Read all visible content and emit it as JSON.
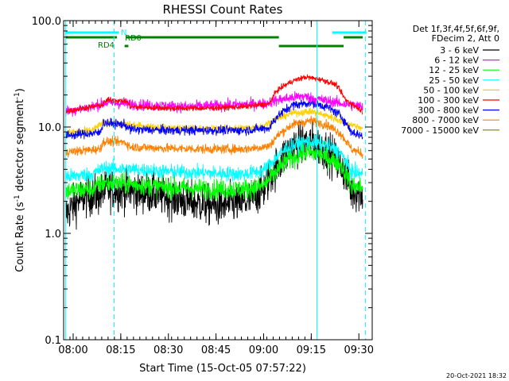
{
  "chart_data": {
    "type": "line",
    "title": "RHESSI Count Rates",
    "xlabel": "Start Time (15-Oct-05 07:57:22)",
    "ylabel_main": "Count Rate (s",
    "ylabel_sup1": "-1",
    "ylabel_mid": " detector segment",
    "ylabel_sup2": "-1",
    "ylabel_end": ")",
    "yscale": "log",
    "ylim": [
      0.1,
      100.0
    ],
    "xlim_minutes": [
      7.95,
      9.57
    ],
    "x_ticks": [
      {
        "label": "08:00",
        "minute": 8.0
      },
      {
        "label": "08:15",
        "minute": 8.25
      },
      {
        "label": "08:30",
        "minute": 8.5
      },
      {
        "label": "08:45",
        "minute": 8.75
      },
      {
        "label": "09:00",
        "minute": 9.0
      },
      {
        "label": "09:15",
        "minute": 9.25
      },
      {
        "label": "09:30",
        "minute": 9.5
      }
    ],
    "y_ticks": [
      {
        "label": "0.1",
        "value": 0.1
      },
      {
        "label": "1.0",
        "value": 1.0
      },
      {
        "label": "10.0",
        "value": 10.0
      },
      {
        "label": "100.0",
        "value": 100.0
      }
    ],
    "legend_header": [
      "Det 1f,3f,4f,5f,6f,9f,",
      "FDecim 2, Att 0"
    ],
    "series": [
      {
        "name": "3 - 6 keV",
        "color": "#000000",
        "noise": 0.22,
        "levels": [
          [
            7.96,
            1.5
          ],
          [
            8.05,
            2.2
          ],
          [
            8.14,
            2.3
          ],
          [
            8.18,
            2.6
          ],
          [
            8.4,
            2.4
          ],
          [
            8.6,
            2.0
          ],
          [
            8.75,
            1.8
          ],
          [
            8.92,
            2.0
          ],
          [
            9.0,
            2.6
          ],
          [
            9.08,
            4.5
          ],
          [
            9.15,
            6.5
          ],
          [
            9.25,
            7.2
          ],
          [
            9.33,
            6.0
          ],
          [
            9.42,
            4.0
          ],
          [
            9.46,
            2.5
          ],
          [
            9.52,
            2.4
          ]
        ]
      },
      {
        "name": "6 - 12 keV",
        "color": "#ff00ff",
        "noise": 0.06,
        "levels": [
          [
            7.96,
            14.0
          ],
          [
            8.1,
            15.5
          ],
          [
            8.18,
            17.0
          ],
          [
            8.4,
            16.0
          ],
          [
            8.6,
            15.5
          ],
          [
            8.8,
            16.0
          ],
          [
            9.0,
            16.5
          ],
          [
            9.08,
            18.0
          ],
          [
            9.2,
            19.5
          ],
          [
            9.3,
            18.0
          ],
          [
            9.42,
            16.5
          ],
          [
            9.52,
            15.5
          ]
        ]
      },
      {
        "name": "12 - 25 keV",
        "color": "#00ff00",
        "noise": 0.11,
        "levels": [
          [
            7.96,
            2.5
          ],
          [
            8.1,
            2.6
          ],
          [
            8.16,
            3.0
          ],
          [
            8.3,
            2.9
          ],
          [
            8.5,
            2.7
          ],
          [
            8.7,
            2.6
          ],
          [
            8.9,
            2.6
          ],
          [
            9.0,
            2.8
          ],
          [
            9.05,
            3.5
          ],
          [
            9.12,
            4.8
          ],
          [
            9.22,
            5.8
          ],
          [
            9.3,
            5.5
          ],
          [
            9.4,
            4.5
          ],
          [
            9.46,
            2.8
          ],
          [
            9.52,
            2.7
          ]
        ]
      },
      {
        "name": "25 - 50 keV",
        "color": "#00ffff",
        "noise": 0.08,
        "levels": [
          [
            7.96,
            3.4
          ],
          [
            8.1,
            3.6
          ],
          [
            8.16,
            4.1
          ],
          [
            8.3,
            4.0
          ],
          [
            8.5,
            3.8
          ],
          [
            8.7,
            3.7
          ],
          [
            8.9,
            3.6
          ],
          [
            9.0,
            3.9
          ],
          [
            9.05,
            4.8
          ],
          [
            9.12,
            6.3
          ],
          [
            9.22,
            7.3
          ],
          [
            9.3,
            7.0
          ],
          [
            9.4,
            5.8
          ],
          [
            9.46,
            3.8
          ],
          [
            9.52,
            3.6
          ]
        ]
      },
      {
        "name": "50 - 100 keV",
        "color": "#ffd000",
        "noise": 0.04,
        "levels": [
          [
            7.96,
            8.8
          ],
          [
            8.1,
            9.3
          ],
          [
            8.16,
            11.0
          ],
          [
            8.28,
            10.5
          ],
          [
            8.5,
            9.8
          ],
          [
            8.7,
            9.6
          ],
          [
            8.9,
            9.8
          ],
          [
            9.0,
            10.2
          ],
          [
            9.05,
            11.5
          ],
          [
            9.15,
            13.5
          ],
          [
            9.25,
            14.0
          ],
          [
            9.35,
            12.5
          ],
          [
            9.42,
            11.0
          ],
          [
            9.52,
            9.8
          ]
        ]
      },
      {
        "name": "100 - 300 keV",
        "color": "#ff0000",
        "noise": 0.03,
        "levels": [
          [
            7.96,
            14.0
          ],
          [
            8.05,
            15.0
          ],
          [
            8.15,
            16.0
          ],
          [
            8.18,
            18.0
          ],
          [
            8.28,
            17.5
          ],
          [
            8.3,
            15.5
          ],
          [
            8.5,
            15.0
          ],
          [
            8.7,
            15.0
          ],
          [
            8.9,
            15.5
          ],
          [
            9.03,
            16.5
          ],
          [
            9.07,
            22.0
          ],
          [
            9.15,
            27.0
          ],
          [
            9.22,
            29.5
          ],
          [
            9.3,
            28.0
          ],
          [
            9.38,
            25.0
          ],
          [
            9.43,
            18.0
          ],
          [
            9.52,
            14.0
          ]
        ]
      },
      {
        "name": "300 - 800 keV",
        "color": "#0000ff",
        "noise": 0.05,
        "levels": [
          [
            7.96,
            8.3
          ],
          [
            8.05,
            8.6
          ],
          [
            8.14,
            8.8
          ],
          [
            8.16,
            11.0
          ],
          [
            8.27,
            10.5
          ],
          [
            8.3,
            9.5
          ],
          [
            8.5,
            9.3
          ],
          [
            8.7,
            9.3
          ],
          [
            8.9,
            9.3
          ],
          [
            9.03,
            9.8
          ],
          [
            9.07,
            12.5
          ],
          [
            9.15,
            16.0
          ],
          [
            9.25,
            17.0
          ],
          [
            9.33,
            15.5
          ],
          [
            9.4,
            13.0
          ],
          [
            9.46,
            9.0
          ],
          [
            9.52,
            8.2
          ]
        ]
      },
      {
        "name": "800 - 7000 keV",
        "color": "#ff8000",
        "noise": 0.05,
        "levels": [
          [
            7.96,
            5.8
          ],
          [
            8.05,
            6.0
          ],
          [
            8.14,
            6.2
          ],
          [
            8.16,
            7.3
          ],
          [
            8.27,
            7.2
          ],
          [
            8.3,
            6.5
          ],
          [
            8.5,
            6.3
          ],
          [
            8.7,
            6.2
          ],
          [
            8.9,
            6.2
          ],
          [
            9.03,
            6.6
          ],
          [
            9.07,
            8.2
          ],
          [
            9.15,
            10.5
          ],
          [
            9.25,
            11.5
          ],
          [
            9.33,
            10.5
          ],
          [
            9.4,
            8.8
          ],
          [
            9.46,
            6.2
          ],
          [
            9.52,
            5.6
          ]
        ]
      },
      {
        "name": "7000 - 15000 keV",
        "color": "#808000",
        "noise": 0.0,
        "levels": []
      }
    ],
    "markers": [
      {
        "label": "N",
        "color": "#00ffff",
        "y_frac": 0.98,
        "segments": [
          [
            7.96,
            8.24
          ],
          [
            9.36,
            9.54
          ]
        ]
      },
      {
        "label": "RD0",
        "color": "#008000",
        "y_frac": 0.885,
        "segments": [
          [
            7.96,
            8.23
          ],
          [
            8.28,
            9.08
          ],
          [
            9.42,
            9.52
          ]
        ]
      },
      {
        "label": "RD4",
        "color": "#008000",
        "y_frac": 0.82,
        "segments": [
          [
            8.27,
            8.29
          ],
          [
            9.08,
            9.42
          ]
        ]
      }
    ],
    "vertical_lines": [
      {
        "minute": 7.96,
        "style": "solid"
      },
      {
        "minute": 8.215,
        "style": "dashed"
      },
      {
        "minute": 9.28,
        "style": "solid"
      },
      {
        "minute": 9.535,
        "style": "dashed"
      }
    ],
    "footer_date": "20-Oct-2021 18:32"
  }
}
